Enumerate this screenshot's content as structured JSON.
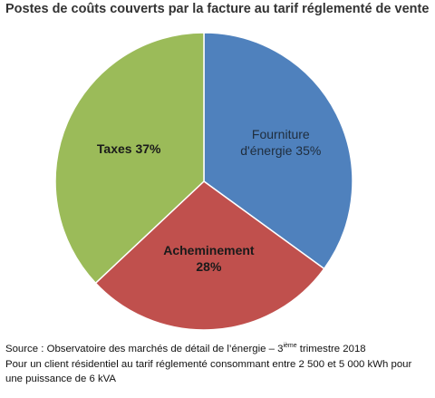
{
  "title": "Postes de coûts couverts par la facture au tarif réglementé de vente",
  "chart_data": {
    "type": "pie",
    "title": "Postes de coûts couverts par la facture au tarif réglementé de vente",
    "slices": [
      {
        "label": "Fourniture d'énergie",
        "value": 35,
        "label_text": [
          "Fourniture",
          "d'énergie 35%"
        ],
        "color": "#4f81bd"
      },
      {
        "label": "Acheminement",
        "value": 28,
        "label_text": [
          "Acheminement",
          "28%"
        ],
        "color": "#c0504d"
      },
      {
        "label": "Taxes",
        "value": 37,
        "label_text": [
          "Taxes 37%"
        ],
        "color": "#9bbb59"
      }
    ],
    "start": "top, clockwise",
    "legend": "none"
  },
  "footer": {
    "source_prefix": "Source : Observatoire des marchés de détail de l’énergie – 3",
    "source_sup": "ième",
    "source_suffix": " trimestre 2018",
    "note": "Pour un client résidentiel au tarif réglementé consommant entre 2 500 et 5 000 kWh pour une puissance de 6 kVA"
  }
}
